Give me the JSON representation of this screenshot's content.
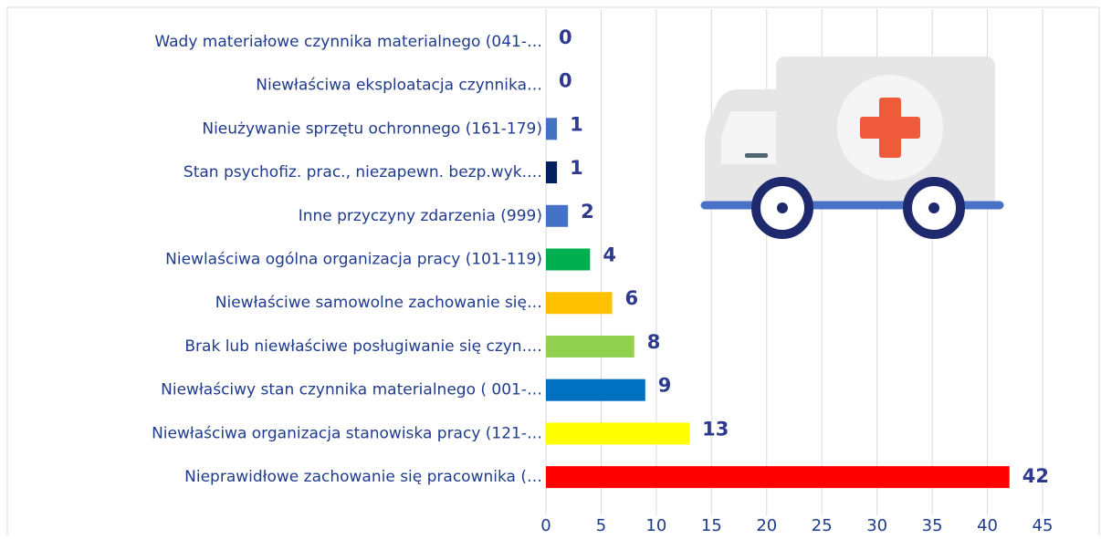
{
  "chart_data": {
    "type": "bar",
    "orientation": "horizontal",
    "categories": [
      "Wady materiałowe czynnika materialnego (041-…",
      "Niewłaściwa eksploatacja czynnika…",
      "Nieużywanie sprzętu ochronnego (161-179)",
      "Stan psychofiz. prac., niezapewn. bezp.wyk.…",
      "Inne przyczyny zdarzenia (999)",
      "Niewlaściwa ogólna organizacja pracy (101-119)",
      "Niewłaściwe samowolne zachowanie się…",
      "Brak lub niewłaściwe posługiwanie się czyn.…",
      "Niewłaściwy stan czynnika materialnego ( 001-…",
      "Niewłaściwa organizacja stanowiska pracy (121-…",
      "Nieprawidłowe zachowanie się pracownika (…"
    ],
    "values": [
      0,
      0,
      1,
      1,
      2,
      4,
      6,
      8,
      9,
      13,
      42
    ],
    "colors": [
      "#4472c4",
      "#4472c4",
      "#4472c4",
      "#002060",
      "#4472c4",
      "#00b050",
      "#ffc000",
      "#92d050",
      "#0070c0",
      "#ffff00",
      "#ff0000"
    ],
    "xlim": [
      0,
      45
    ],
    "xticks": [
      0,
      5,
      10,
      15,
      20,
      25,
      30,
      35,
      40,
      45
    ],
    "grid": true
  }
}
